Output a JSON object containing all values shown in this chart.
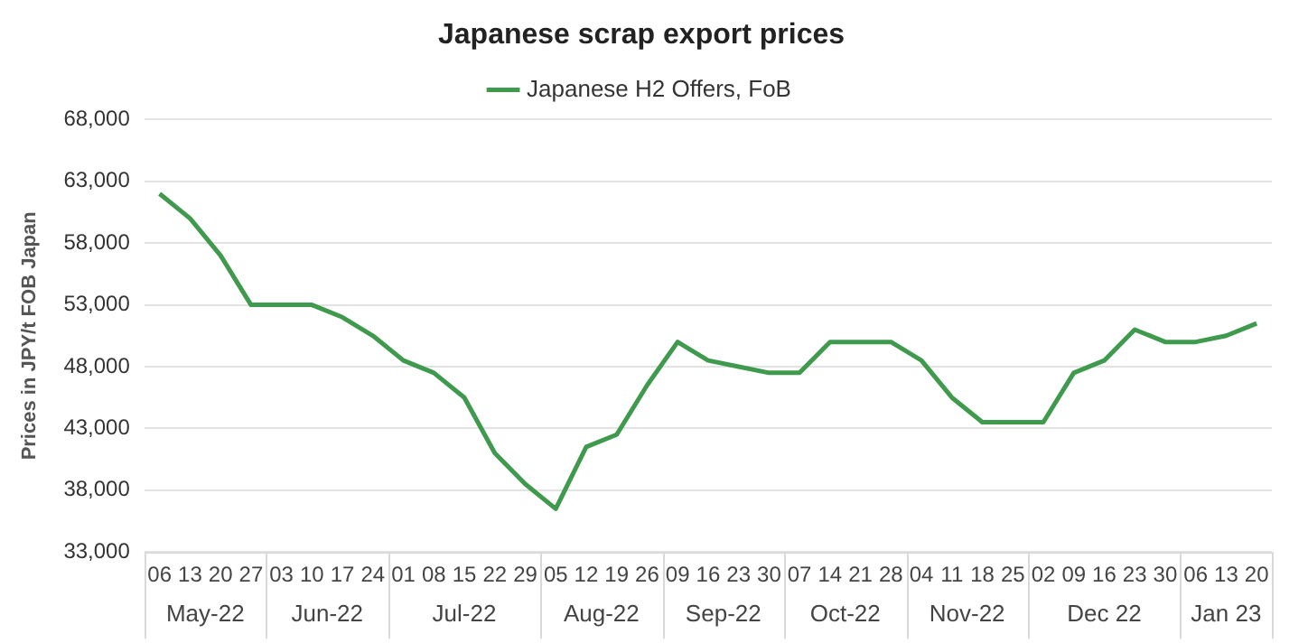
{
  "chart_data": {
    "type": "line",
    "title": "Japanese scrap export prices",
    "ylabel": "Prices in JPY/t FOB Japan",
    "categories": [
      "06",
      "13",
      "20",
      "27",
      "03",
      "10",
      "17",
      "24",
      "01",
      "08",
      "15",
      "22",
      "29",
      "05",
      "12",
      "19",
      "26",
      "09",
      "16",
      "23",
      "30",
      "07",
      "14",
      "21",
      "28",
      "04",
      "11",
      "18",
      "25",
      "02",
      "09",
      "16",
      "23",
      "30",
      "06",
      "13",
      "20"
    ],
    "series": [
      {
        "name": "Japanese H2 Offers, FoB",
        "color": "#3f9a4e",
        "values": [
          62000,
          60000,
          57000,
          53000,
          53000,
          53000,
          52000,
          50500,
          48500,
          47500,
          45500,
          41000,
          38500,
          36500,
          41500,
          42500,
          46500,
          50000,
          48500,
          48000,
          47500,
          47500,
          50000,
          50000,
          50000,
          48500,
          45500,
          43500,
          43500,
          43500,
          47500,
          48500,
          51000,
          50000,
          50000,
          50500,
          51500
        ]
      }
    ],
    "ylim": [
      33000,
      68000
    ],
    "yticks": [
      {
        "value": 33000,
        "label": "33,000"
      },
      {
        "value": 38000,
        "label": "38,000"
      },
      {
        "value": 43000,
        "label": "43,000"
      },
      {
        "value": 48000,
        "label": "48,000"
      },
      {
        "value": 53000,
        "label": "53,000"
      },
      {
        "value": 58000,
        "label": "58,000"
      },
      {
        "value": 63000,
        "label": "63,000"
      },
      {
        "value": 68000,
        "label": "68,000"
      }
    ],
    "grid": "y",
    "legend": "top",
    "marker": "none",
    "line_style": "solid",
    "annotations": [
      "May-22",
      "Jun-22",
      "Jul-22",
      "Aug-22",
      "Sep-22",
      "Oct-22",
      "Nov-22",
      "Dec 22",
      "Jan 23"
    ]
  }
}
